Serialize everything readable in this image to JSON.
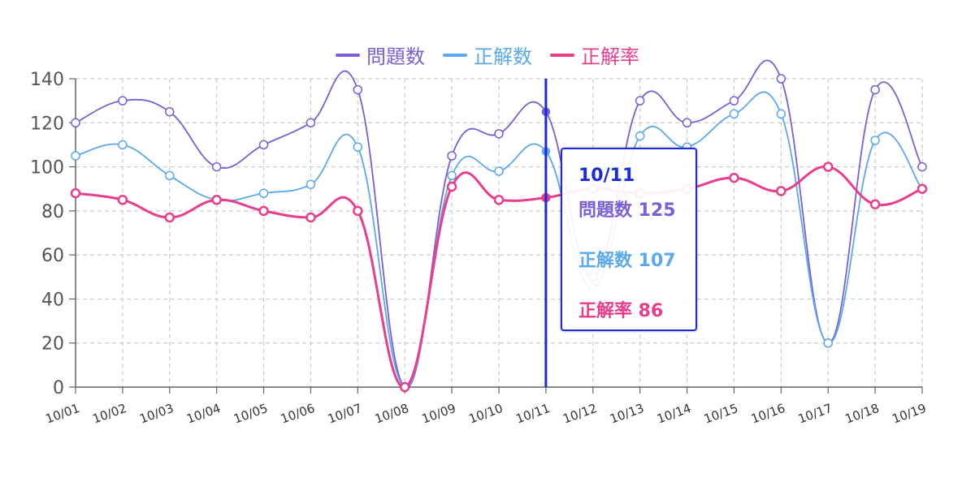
{
  "colors": {
    "grid": "#cccccc",
    "axis": "#666666",
    "cursor": "#1c2bd6",
    "tooltip_title": "#1c2bd6"
  },
  "legend": {
    "items": [
      {
        "label": "問題数",
        "color": "#7b5fd6"
      },
      {
        "label": "正解数",
        "color": "#5aa9ee"
      },
      {
        "label": "正解率",
        "color": "#e83e8c"
      }
    ]
  },
  "tooltip": {
    "title": "10/11",
    "rows": [
      {
        "text": "問題数 125",
        "color": "#7b5fd6"
      },
      {
        "text": "正解数 107",
        "color": "#5aa9ee"
      },
      {
        "text": "正解率 86",
        "color": "#e83e8c"
      }
    ]
  },
  "chart_data": {
    "type": "line",
    "x": [
      "10/01",
      "10/02",
      "10/03",
      "10/04",
      "10/05",
      "10/06",
      "10/07",
      "10/08",
      "10/09",
      "10/10",
      "10/11",
      "10/12",
      "10/13",
      "10/14",
      "10/15",
      "10/16",
      "10/17",
      "10/18",
      "10/19"
    ],
    "ylim": [
      0,
      140
    ],
    "yticks": [
      0,
      20,
      40,
      60,
      80,
      100,
      120,
      140
    ],
    "grid": true,
    "legend_position": "top-center",
    "highlighted_x": "10/11",
    "series": [
      {
        "name": "問題数",
        "color": "#7b5fd6",
        "width": 1.8,
        "values": [
          120,
          130,
          125,
          100,
          110,
          120,
          135,
          0,
          105,
          115,
          125,
          50,
          130,
          120,
          130,
          140,
          20,
          135,
          100
        ]
      },
      {
        "name": "正解数",
        "color": "#5aa9ee",
        "width": 1.8,
        "values": [
          105,
          110,
          96,
          85,
          88,
          92,
          109,
          0,
          96,
          98,
          107,
          45,
          114,
          109,
          124,
          124,
          20,
          112,
          90
        ]
      },
      {
        "name": "正解率",
        "color": "#e83e8c",
        "width": 3,
        "values": [
          88,
          85,
          77,
          85,
          80,
          77,
          80,
          0,
          91,
          85,
          86,
          90,
          88,
          90,
          95,
          89,
          100,
          83,
          90
        ]
      }
    ]
  }
}
